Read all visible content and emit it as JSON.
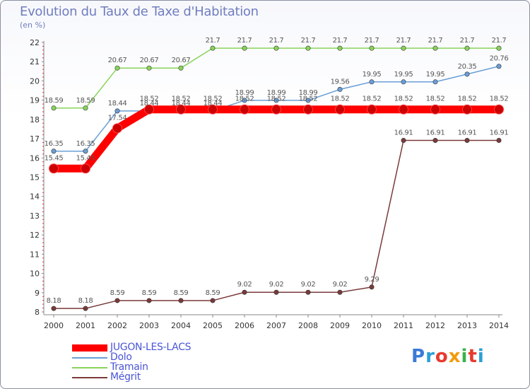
{
  "title": "Evolution du Taux de Taxe d'Habitation",
  "unit": "(en %)",
  "logo": {
    "text": "Proxiti",
    "colors": [
      "#3a7bd5",
      "#2a9fd8",
      "#e63b2e",
      "#f29b0c",
      "#37b34a",
      "#e63b2e",
      "#2a9fd8"
    ]
  },
  "chart_data": {
    "type": "line",
    "x": [
      2000,
      2001,
      2002,
      2003,
      2004,
      2005,
      2006,
      2007,
      2008,
      2009,
      2010,
      2011,
      2012,
      2013,
      2014
    ],
    "ylim": [
      8,
      22
    ],
    "yticks": [
      8,
      9,
      10,
      11,
      12,
      13,
      14,
      15,
      16,
      17,
      18,
      19,
      20,
      21,
      22
    ],
    "grid": false,
    "series": [
      {
        "name": "JUGON-LES-LACS",
        "color": "#ff0000",
        "values": [
          15.45,
          15.45,
          17.54,
          18.52,
          18.52,
          18.52,
          18.52,
          18.52,
          18.52,
          18.52,
          18.52,
          18.52,
          18.52,
          18.52,
          18.52
        ],
        "labels": [
          "15.45",
          "15.45",
          "17.54",
          "18.52",
          "18.52",
          "18.52",
          "18.52",
          "18.52",
          "18.52",
          "18.52",
          "18.52",
          "18.52",
          "18.52",
          "18.52",
          "18.52"
        ]
      },
      {
        "name": "Dolo",
        "color": "#6a9fd6",
        "values": [
          16.35,
          16.35,
          18.44,
          18.44,
          18.44,
          18.44,
          18.99,
          18.99,
          18.99,
          19.56,
          19.95,
          19.95,
          19.95,
          20.35,
          20.76
        ],
        "labels": [
          "16.35",
          "16.35",
          "18.44",
          "18.44",
          "18.44",
          "18.44",
          "18.99",
          "18.99",
          "18.99",
          "19.56",
          "19.95",
          "19.95",
          "19.95",
          "20.35",
          "20.76"
        ]
      },
      {
        "name": "Tramain",
        "color": "#88d45a",
        "values": [
          18.59,
          18.59,
          20.67,
          20.67,
          20.67,
          21.7,
          21.7,
          21.7,
          21.7,
          21.7,
          21.7,
          21.7,
          21.7,
          21.7,
          21.7
        ],
        "labels": [
          "18.59",
          "18.59",
          "20.67",
          "20.67",
          "20.67",
          "21.7",
          "21.7",
          "21.7",
          "21.7",
          "21.7",
          "21.7",
          "21.7",
          "21.7",
          "21.7",
          "21.7"
        ]
      },
      {
        "name": "Mégrit",
        "color": "#7a3a3a",
        "values": [
          8.18,
          8.18,
          8.59,
          8.59,
          8.59,
          8.59,
          9.02,
          9.02,
          9.02,
          9.02,
          9.29,
          16.91,
          16.91,
          16.91,
          16.91
        ],
        "labels": [
          "8.18",
          "8.18",
          "8.59",
          "8.59",
          "8.59",
          "8.59",
          "9.02",
          "9.02",
          "9.02",
          "9.02",
          "9.29",
          "16.91",
          "16.91",
          "16.91",
          "16.91"
        ]
      }
    ]
  }
}
